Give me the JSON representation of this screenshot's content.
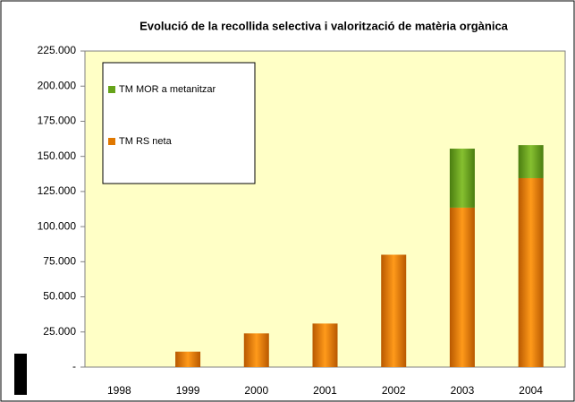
{
  "chart_data": {
    "type": "stacked_bar",
    "title": "Evolució de la recollida selectiva i valorització de matèria orgànica",
    "categories": [
      "1998",
      "1999",
      "2000",
      "2001",
      "2002",
      "2003",
      "2004"
    ],
    "series": [
      {
        "name": "TM RS neta",
        "color": "#e07800",
        "values": [
          0,
          11000,
          24000,
          31000,
          80000,
          113500,
          134500
        ]
      },
      {
        "name": "TM MOR a metanitzar",
        "color": "#66a31a",
        "values": [
          0,
          0,
          0,
          0,
          0,
          42000,
          23500
        ]
      }
    ],
    "ylim": [
      0,
      225000
    ],
    "yticks": [
      {
        "value": 0,
        "label": "-"
      },
      {
        "value": 25000,
        "label": "25.000"
      },
      {
        "value": 50000,
        "label": "50.000"
      },
      {
        "value": 75000,
        "label": "75.000"
      },
      {
        "value": 100000,
        "label": "100.000"
      },
      {
        "value": 125000,
        "label": "125.000"
      },
      {
        "value": 150000,
        "label": "150.000"
      },
      {
        "value": 175000,
        "label": "175.000"
      },
      {
        "value": 200000,
        "label": "200.000"
      },
      {
        "value": 225000,
        "label": "225.000"
      }
    ],
    "grid": false,
    "legend": "top-left"
  }
}
